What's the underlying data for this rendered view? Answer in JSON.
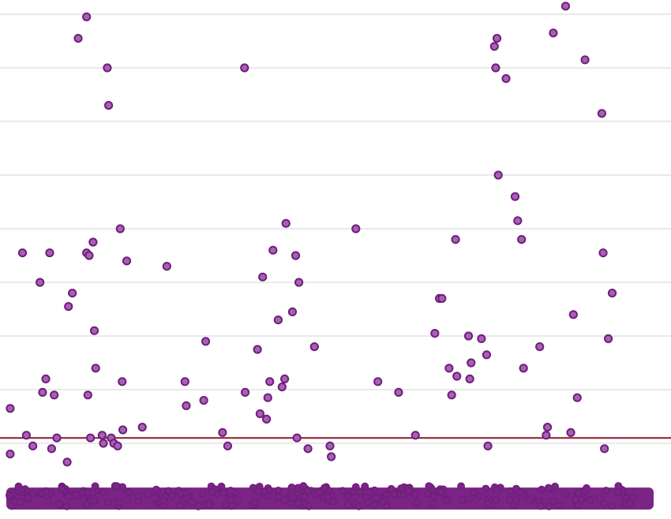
{
  "chart_data": {
    "type": "scatter",
    "title": "",
    "xlabel": "",
    "ylabel": "",
    "xlim": [
      0,
      100
    ],
    "ylim": [
      0,
      18
    ],
    "grid": true,
    "gridlines": [
      2,
      4,
      6,
      8,
      10,
      12,
      14,
      16,
      18
    ],
    "legend": "none",
    "colors": {
      "point_fill": "#a860b4",
      "point_stroke": "#6e1f7a",
      "dense_band": "#7a2585",
      "threshold": "#8b1a2b",
      "grid": "#e9e9ee"
    },
    "threshold": 2.2,
    "dense_band_range": [
      0,
      0.35
    ],
    "series": [
      {
        "points": [
          [
            0.6,
            3.3
          ],
          [
            0.6,
            1.6
          ],
          [
            2.5,
            9.1
          ],
          [
            3.1,
            2.3
          ],
          [
            4.1,
            1.9
          ],
          [
            5.2,
            8.0
          ],
          [
            5.6,
            3.9
          ],
          [
            6.1,
            4.4
          ],
          [
            6.7,
            9.1
          ],
          [
            7.0,
            1.8
          ],
          [
            7.4,
            3.8
          ],
          [
            7.8,
            2.2
          ],
          [
            9.4,
            1.3
          ],
          [
            9.6,
            7.1
          ],
          [
            10.2,
            7.6
          ],
          [
            11.1,
            17.1
          ],
          [
            12.4,
            17.9
          ],
          [
            12.4,
            9.1
          ],
          [
            12.6,
            3.8
          ],
          [
            12.8,
            9.0
          ],
          [
            13.0,
            2.2
          ],
          [
            13.4,
            9.5
          ],
          [
            13.6,
            6.2
          ],
          [
            13.8,
            4.8
          ],
          [
            14.8,
            2.3
          ],
          [
            15.0,
            2.0
          ],
          [
            15.6,
            16.0
          ],
          [
            15.8,
            14.6
          ],
          [
            16.2,
            2.2
          ],
          [
            16.6,
            2.0
          ],
          [
            17.2,
            1.9
          ],
          [
            17.6,
            10.0
          ],
          [
            17.9,
            4.3
          ],
          [
            18.0,
            2.5
          ],
          [
            18.6,
            8.8
          ],
          [
            21.0,
            2.6
          ],
          [
            24.8,
            8.6
          ],
          [
            27.6,
            4.3
          ],
          [
            27.8,
            3.4
          ],
          [
            30.5,
            3.6
          ],
          [
            30.8,
            5.8
          ],
          [
            33.4,
            2.4
          ],
          [
            34.2,
            1.9
          ],
          [
            36.8,
            16.0
          ],
          [
            36.9,
            3.9
          ],
          [
            38.8,
            5.5
          ],
          [
            39.2,
            3.1
          ],
          [
            39.6,
            8.2
          ],
          [
            40.2,
            2.9
          ],
          [
            40.4,
            3.7
          ],
          [
            40.7,
            4.3
          ],
          [
            41.2,
            9.2
          ],
          [
            42.0,
            6.6
          ],
          [
            42.6,
            4.1
          ],
          [
            43.0,
            4.4
          ],
          [
            43.2,
            10.2
          ],
          [
            44.2,
            6.9
          ],
          [
            44.7,
            9.0
          ],
          [
            44.9,
            2.2
          ],
          [
            45.2,
            8.0
          ],
          [
            46.6,
            1.8
          ],
          [
            47.6,
            5.6
          ],
          [
            50.0,
            1.9
          ],
          [
            50.2,
            1.5
          ],
          [
            54.0,
            10.0
          ],
          [
            57.4,
            4.3
          ],
          [
            60.6,
            3.9
          ],
          [
            63.2,
            2.3
          ],
          [
            66.2,
            6.1
          ],
          [
            66.9,
            7.4
          ],
          [
            67.3,
            7.4
          ],
          [
            68.4,
            4.8
          ],
          [
            68.8,
            3.8
          ],
          [
            69.4,
            9.6
          ],
          [
            69.6,
            4.5
          ],
          [
            71.4,
            6.0
          ],
          [
            71.6,
            4.4
          ],
          [
            71.8,
            5.0
          ],
          [
            73.4,
            5.9
          ],
          [
            74.2,
            5.3
          ],
          [
            74.4,
            1.9
          ],
          [
            75.4,
            16.8
          ],
          [
            75.6,
            16.0
          ],
          [
            75.8,
            17.1
          ],
          [
            76.0,
            12.0
          ],
          [
            77.2,
            15.6
          ],
          [
            78.6,
            11.2
          ],
          [
            79.0,
            10.3
          ],
          [
            79.6,
            9.6
          ],
          [
            79.9,
            4.8
          ],
          [
            82.4,
            5.6
          ],
          [
            83.4,
            2.3
          ],
          [
            83.6,
            2.6
          ],
          [
            84.5,
            17.3
          ],
          [
            86.4,
            18.3
          ],
          [
            87.2,
            2.4
          ],
          [
            87.6,
            6.8
          ],
          [
            88.2,
            3.7
          ],
          [
            89.4,
            16.3
          ],
          [
            92.0,
            14.3
          ],
          [
            92.2,
            9.1
          ],
          [
            92.4,
            1.8
          ],
          [
            93.0,
            5.9
          ],
          [
            93.6,
            7.6
          ]
        ]
      }
    ]
  }
}
